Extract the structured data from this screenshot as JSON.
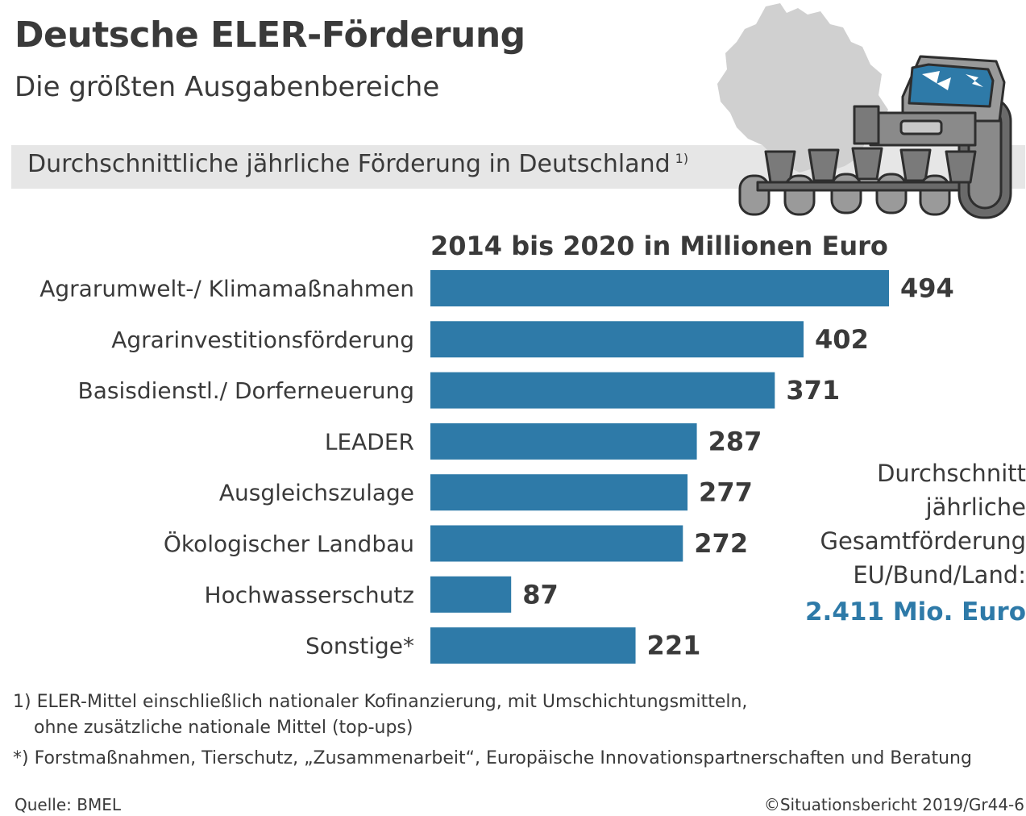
{
  "header": {
    "title": "Deutsche ELER-Förderung",
    "subtitle": "Die größten Ausgabenbereiche"
  },
  "banner": {
    "text": "Durchschnittliche jährliche Förderung in Deutschland",
    "footnote_ref": "1)"
  },
  "illustration": {
    "icons": [
      "germany-map-icon",
      "tractor-icon"
    ]
  },
  "colors": {
    "bar": "#2e7aa8",
    "highlight": "#2e7aa8",
    "banner_bg": "#e6e6e6",
    "map": "#d0d0d0",
    "text": "#3a3a3a"
  },
  "chart_data": {
    "type": "bar",
    "orientation": "horizontal",
    "title": "2014 bis 2020 in Millionen Euro",
    "categories": [
      "Agrarumwelt-/ Klimamaßnahmen",
      "Agrarinvestitionsförderung",
      "Basisdienstl./ Dorferneuerung",
      "LEADER",
      "Ausgleichszulage",
      "Ökologischer Landbau",
      "Hochwasserschutz",
      "Sonstige*"
    ],
    "values": [
      494,
      402,
      371,
      287,
      277,
      272,
      87,
      221
    ],
    "xlim": [
      0,
      494
    ],
    "grid": false,
    "data_labels": true
  },
  "summary": {
    "lines": [
      "Durchschnitt",
      "jährliche",
      "Gesamtförderung",
      "EU/Bund/Land:"
    ],
    "value": "2.411 Mio. Euro"
  },
  "footnotes": {
    "fn1_line1": "1) ELER-Mittel einschließlich nationaler Kofinanzierung, mit Umschichtungsmitteln,",
    "fn1_line2": "ohne zusätzliche nationale Mittel (top-ups)",
    "fn2": "*) Forstmaßnahmen, Tierschutz, „Zusammenarbeit“, Europäische Innovationspartnerschaften und Beratung"
  },
  "source": "Quelle: BMEL",
  "copyright": "©Situationsbericht 2019/Gr44-6"
}
